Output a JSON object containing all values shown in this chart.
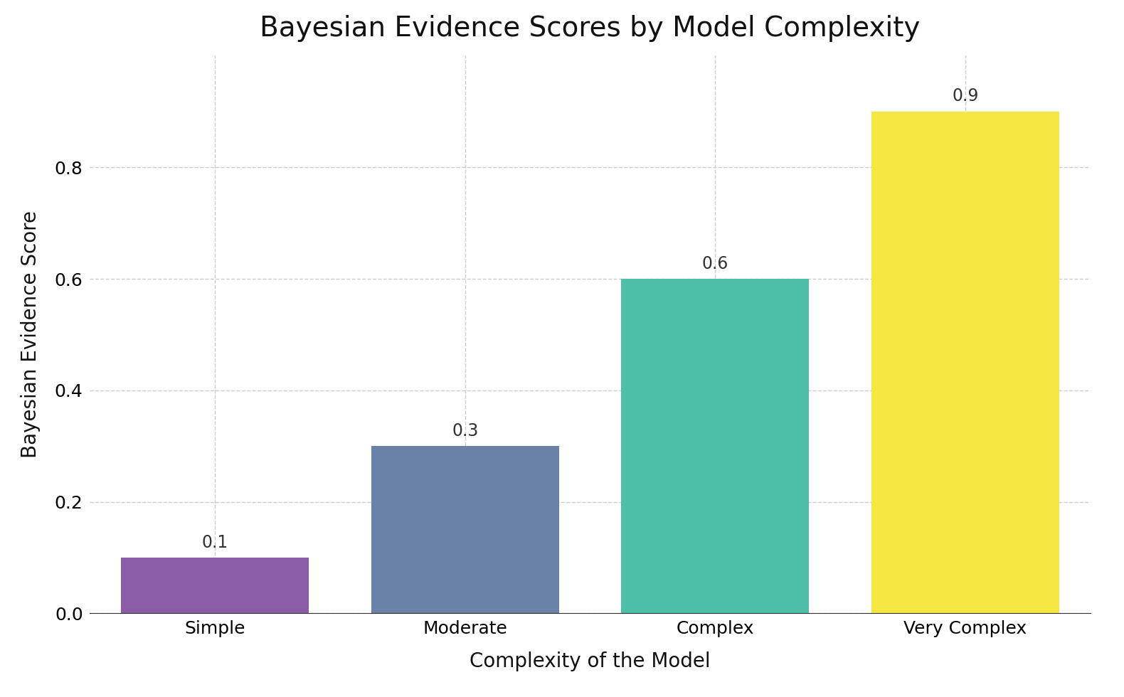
{
  "categories": [
    "Simple",
    "Moderate",
    "Complex",
    "Very Complex"
  ],
  "values": [
    0.1,
    0.3,
    0.6,
    0.9
  ],
  "bar_colors": [
    "#8B5CA8",
    "#6A82A8",
    "#4DBFA8",
    "#F5E642"
  ],
  "title": "Bayesian Evidence Scores by Model Complexity",
  "xlabel": "Complexity of the Model",
  "ylabel": "Bayesian Evidence Score",
  "ylim": [
    0,
    1.0
  ],
  "yticks": [
    0.0,
    0.2,
    0.4,
    0.6,
    0.8
  ],
  "title_fontsize": 28,
  "label_fontsize": 20,
  "tick_fontsize": 18,
  "annotation_fontsize": 17,
  "bar_width": 0.75,
  "grid_color": "#cccccc",
  "background_color": "#ffffff",
  "spine_color": "#333333"
}
